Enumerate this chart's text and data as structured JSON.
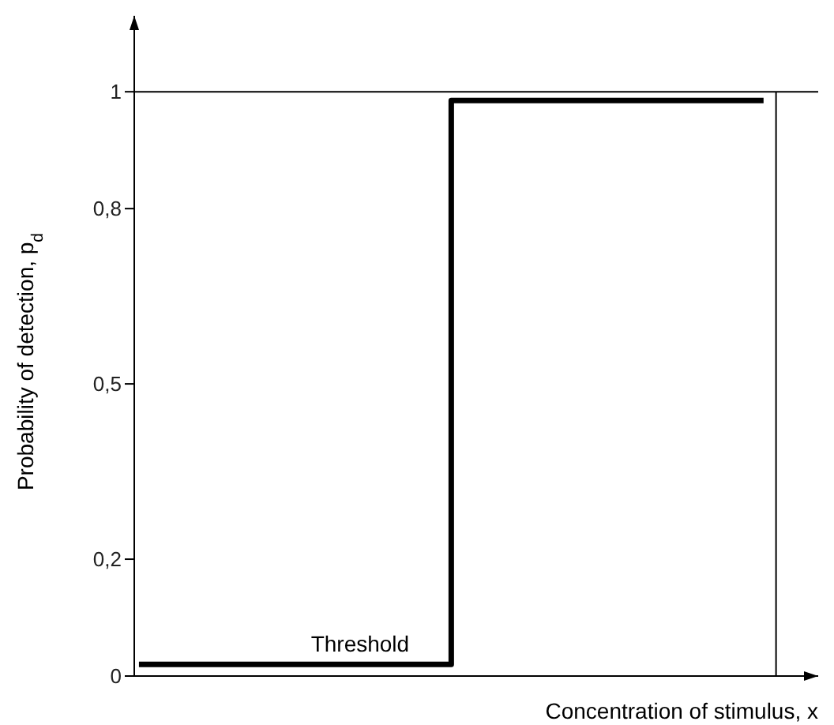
{
  "chart_data": {
    "type": "step",
    "xlabel": "Concentration of stimulus, x",
    "ylabel": "Probability of detection, p$_{d}$",
    "categories": [
      null,
      null,
      null
    ],
    "series": [
      {
        "color": "#000000",
        "values": [
          0.02,
          0.985,
          0.985
        ]
      }
    ],
    "ylim": [
      0,
      1.13
    ],
    "yticks": [
      0,
      {
        "value": 0.2,
        "label": "0,2"
      },
      {
        "value": 0.5,
        "label": "0,5"
      },
      {
        "value": 0.8,
        "label": "0,8"
      },
      1
    ],
    "ref_lines": [
      {
        "axis": "y",
        "value": 1,
        "color": "#000000"
      }
    ],
    "annotations": [
      "Threshold"
    ],
    "grid": false,
    "legend": false,
    "tick_labels": "y",
    "marker": "none",
    "line_style": "solid"
  }
}
